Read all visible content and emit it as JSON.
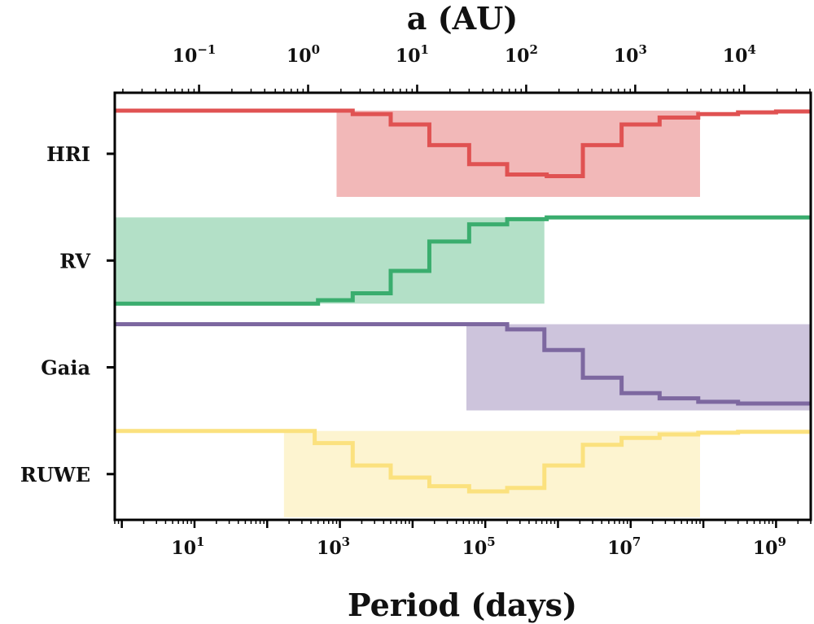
{
  "chart_data": {
    "type": "step",
    "x_axis": {
      "label": "Period (days)",
      "scale": "log",
      "range": [
        0.8,
        3000000000.0
      ],
      "tick_values": [
        10,
        1000,
        100000,
        10000000,
        1000000000
      ],
      "tick_labels": [
        {
          "base": "10",
          "exp": "1"
        },
        {
          "base": "10",
          "exp": "3"
        },
        {
          "base": "10",
          "exp": "5"
        },
        {
          "base": "10",
          "exp": "7"
        },
        {
          "base": "10",
          "exp": "9"
        }
      ]
    },
    "top_axis": {
      "label": "a (AU)",
      "scale": "log",
      "tick_values": [
        0.1,
        1,
        10,
        100,
        1000,
        10000
      ],
      "tick_labels": [
        {
          "base": "10",
          "exp": "−1"
        },
        {
          "base": "10",
          "exp": "0"
        },
        {
          "base": "10",
          "exp": "1"
        },
        {
          "base": "10",
          "exp": "2"
        },
        {
          "base": "10",
          "exp": "3"
        },
        {
          "base": "10",
          "exp": "4"
        }
      ]
    },
    "rows": [
      "HRI",
      "RV",
      "Gaia",
      "RUWE"
    ],
    "series": [
      {
        "name": "HRI",
        "color": "#e05252",
        "band_color": "#f2b8b8",
        "band_x": [
          900,
          90000000
        ],
        "steps": [
          {
            "x": 1500,
            "frac": 0.96
          },
          {
            "x": 5000,
            "frac": 0.84
          },
          {
            "x": 17000,
            "frac": 0.6
          },
          {
            "x": 60000,
            "frac": 0.38
          },
          {
            "x": 200000,
            "frac": 0.26
          },
          {
            "x": 700000,
            "frac": 0.24
          },
          {
            "x": 2200000,
            "frac": 0.6
          },
          {
            "x": 7500000,
            "frac": 0.84
          },
          {
            "x": 25000000,
            "frac": 0.92
          },
          {
            "x": 85000000,
            "frac": 0.96
          },
          {
            "x": 300000000,
            "frac": 0.98
          },
          {
            "x": 1000000000,
            "frac": 0.99
          }
        ]
      },
      {
        "name": "RV",
        "color": "#3aad6e",
        "band_color": "#b3e0c7",
        "band_x": [
          0.8,
          650000
        ],
        "steps": [
          {
            "x": 500,
            "frac": 0.04
          },
          {
            "x": 1500,
            "frac": 0.12
          },
          {
            "x": 5000,
            "frac": 0.38
          },
          {
            "x": 17000,
            "frac": 0.72
          },
          {
            "x": 60000,
            "frac": 0.92
          },
          {
            "x": 200000,
            "frac": 0.98
          },
          {
            "x": 700000,
            "frac": 1.0
          }
        ]
      },
      {
        "name": "Gaia",
        "color": "#7d68a0",
        "band_color": "#cdc4dc",
        "band_x": [
          55000,
          3000000000.0
        ],
        "steps": [
          {
            "x": 200000,
            "frac": 0.94
          },
          {
            "x": 650000,
            "frac": 0.7
          },
          {
            "x": 2200000,
            "frac": 0.38
          },
          {
            "x": 7500000,
            "frac": 0.2
          },
          {
            "x": 25000000,
            "frac": 0.14
          },
          {
            "x": 85000000,
            "frac": 0.1
          },
          {
            "x": 300000000,
            "frac": 0.08
          }
        ]
      },
      {
        "name": "RUWE",
        "color": "#fbe17e",
        "band_color": "#fdf4d0",
        "band_x": [
          170,
          90000000
        ],
        "steps": [
          {
            "x": 450,
            "frac": 0.86
          },
          {
            "x": 1500,
            "frac": 0.6
          },
          {
            "x": 5000,
            "frac": 0.46
          },
          {
            "x": 17000,
            "frac": 0.36
          },
          {
            "x": 60000,
            "frac": 0.3
          },
          {
            "x": 200000,
            "frac": 0.34
          },
          {
            "x": 650000,
            "frac": 0.6
          },
          {
            "x": 2200000,
            "frac": 0.84
          },
          {
            "x": 7500000,
            "frac": 0.92
          },
          {
            "x": 25000000,
            "frac": 0.96
          },
          {
            "x": 85000000,
            "frac": 0.98
          },
          {
            "x": 300000000,
            "frac": 0.99
          }
        ]
      }
    ],
    "legend": "none",
    "grid": false
  }
}
